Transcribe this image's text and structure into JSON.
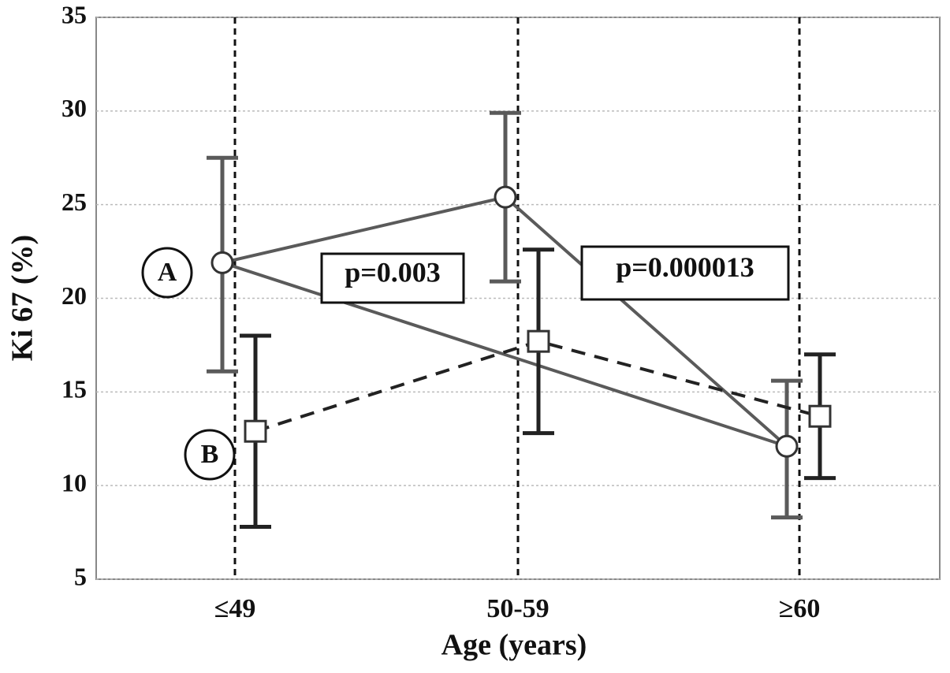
{
  "chart_data": {
    "type": "errorline",
    "x_label": "Age (years)",
    "y_label": "Ki 67 (%)",
    "categories": [
      "≤49",
      "50-59",
      "≥60"
    ],
    "series": [
      {
        "name": "A",
        "color": "#5a5a5a",
        "marker": "circle",
        "dashed": false,
        "values": [
          21.9,
          25.4,
          12.1
        ],
        "upper": [
          27.5,
          29.9,
          15.6
        ],
        "lower": [
          16.1,
          20.9,
          8.3
        ]
      },
      {
        "name": "B",
        "color": "#222222",
        "marker": "square",
        "dashed": true,
        "values": [
          12.9,
          17.7,
          13.7
        ],
        "upper": [
          18.0,
          22.6,
          17.0
        ],
        "lower": [
          7.8,
          12.8,
          10.4
        ]
      }
    ],
    "annotations": [
      "p=0.003",
      "p=0.000013"
    ],
    "ylim": [
      5,
      35
    ],
    "yticks": [
      5,
      10,
      15,
      20,
      25,
      30,
      35
    ],
    "grid": true
  }
}
